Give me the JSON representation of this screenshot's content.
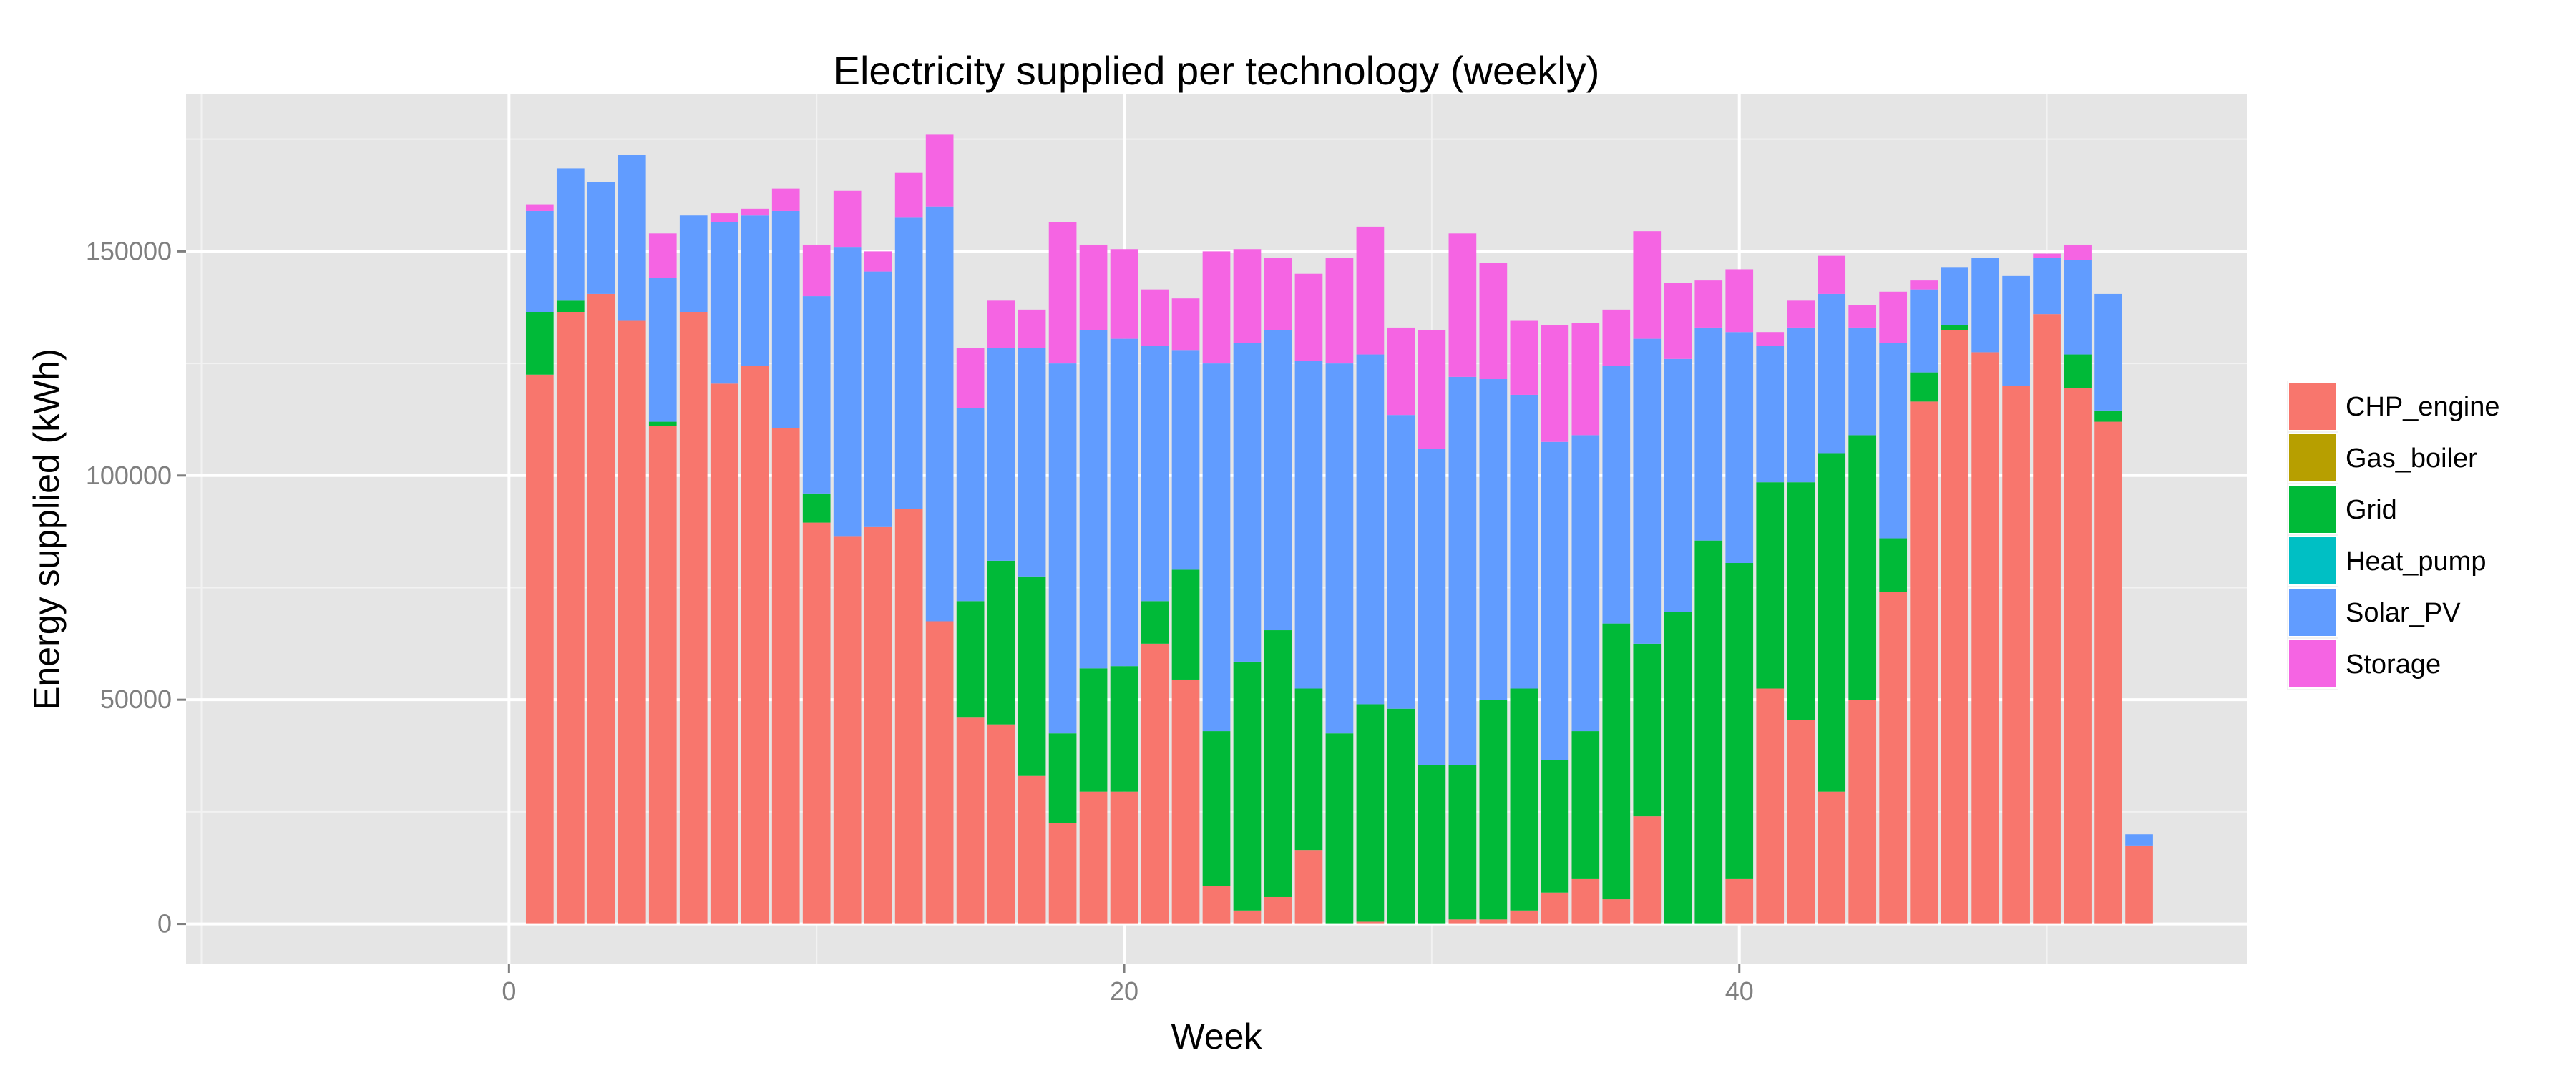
{
  "chart_data": {
    "type": "bar",
    "stacked": true,
    "title": "Electricity supplied per technology (weekly)",
    "xlabel": "Week",
    "ylabel": "Energy supplied (kWh)",
    "xlim": [
      -10.5,
      56.5
    ],
    "ylim": [
      -9000,
      185000
    ],
    "xticks": [
      0,
      20,
      40
    ],
    "xtick_labels": [
      "0",
      "20",
      "40"
    ],
    "yticks": [
      0,
      50000,
      100000,
      150000
    ],
    "ytick_labels": [
      "0",
      "50000",
      "100000",
      "150000"
    ],
    "grid": true,
    "legend_position": "right",
    "x": [
      1,
      2,
      3,
      4,
      5,
      6,
      7,
      8,
      9,
      10,
      11,
      12,
      13,
      14,
      15,
      16,
      17,
      18,
      19,
      20,
      21,
      22,
      23,
      24,
      25,
      26,
      27,
      28,
      29,
      30,
      31,
      32,
      33,
      34,
      35,
      36,
      37,
      38,
      39,
      40,
      41,
      42,
      43,
      44,
      45,
      46,
      47,
      48,
      49,
      50,
      51,
      52,
      53,
      54
    ],
    "series": [
      {
        "name": "CHP_engine",
        "color": "#F8766D",
        "values": [
          122500,
          136500,
          140500,
          134500,
          111000,
          136500,
          120500,
          124500,
          110500,
          89500,
          86500,
          88500,
          92500,
          67500,
          46000,
          44500,
          33000,
          22500,
          29500,
          29500,
          62500,
          54500,
          8500,
          3000,
          6000,
          16500,
          0,
          500,
          0,
          0,
          1000,
          1000,
          3000,
          7000,
          10000,
          5500,
          24000,
          0,
          0,
          10000,
          52500,
          45500,
          29500,
          50000,
          74000,
          116500,
          132500,
          127500,
          120000,
          136000,
          119500,
          112000,
          17500,
          0
        ]
      },
      {
        "name": "Gas_boiler",
        "color": "#B79F00",
        "values": [
          0,
          0,
          0,
          0,
          0,
          0,
          0,
          0,
          0,
          0,
          0,
          0,
          0,
          0,
          0,
          0,
          0,
          0,
          0,
          0,
          0,
          0,
          0,
          0,
          0,
          0,
          0,
          0,
          0,
          0,
          0,
          0,
          0,
          0,
          0,
          0,
          0,
          0,
          0,
          0,
          0,
          0,
          0,
          0,
          0,
          0,
          0,
          0,
          0,
          0,
          0,
          0,
          0,
          0
        ]
      },
      {
        "name": "Grid",
        "color": "#00BA38",
        "values": [
          14000,
          2500,
          0,
          0,
          1000,
          0,
          0,
          0,
          0,
          6500,
          0,
          0,
          0,
          0,
          26000,
          36500,
          44500,
          20000,
          27500,
          28000,
          9500,
          24500,
          34500,
          55500,
          59500,
          36000,
          42500,
          48500,
          48000,
          35500,
          34500,
          49000,
          49500,
          29500,
          33000,
          61500,
          38500,
          69500,
          85500,
          70500,
          46000,
          53000,
          75500,
          59000,
          12000,
          6500,
          1000,
          0,
          0,
          0,
          7500,
          2500,
          0,
          0
        ]
      },
      {
        "name": "Heat_pump",
        "color": "#00BFC4",
        "values": [
          0,
          0,
          0,
          0,
          0,
          0,
          0,
          0,
          0,
          0,
          0,
          0,
          0,
          0,
          0,
          0,
          0,
          0,
          0,
          0,
          0,
          0,
          0,
          0,
          0,
          0,
          0,
          0,
          0,
          0,
          0,
          0,
          0,
          0,
          0,
          0,
          0,
          0,
          0,
          0,
          0,
          0,
          0,
          0,
          0,
          0,
          0,
          0,
          0,
          0,
          0,
          0,
          0,
          0
        ]
      },
      {
        "name": "Solar_PV",
        "color": "#619CFF",
        "values": [
          22500,
          29500,
          25000,
          37000,
          32000,
          21500,
          36000,
          33500,
          48500,
          44000,
          64500,
          57000,
          65000,
          92500,
          43000,
          47500,
          51000,
          82500,
          75500,
          73000,
          57000,
          49000,
          82000,
          71000,
          67000,
          73000,
          82500,
          78000,
          65500,
          70500,
          86500,
          71500,
          65500,
          71000,
          66000,
          57500,
          68000,
          56500,
          47500,
          51500,
          30500,
          34500,
          35500,
          24000,
          43500,
          18500,
          13000,
          21000,
          24500,
          12500,
          21000,
          26000,
          2500,
          0
        ]
      },
      {
        "name": "Storage",
        "color": "#F564E3",
        "values": [
          1500,
          0,
          0,
          0,
          10000,
          0,
          2000,
          1500,
          5000,
          11500,
          12500,
          4500,
          10000,
          16000,
          13500,
          10500,
          8500,
          31500,
          19000,
          20000,
          12500,
          11500,
          25000,
          21000,
          16000,
          19500,
          23500,
          28500,
          19500,
          26500,
          32000,
          26000,
          16500,
          26000,
          25000,
          12500,
          24000,
          17000,
          10500,
          14000,
          3000,
          6000,
          8500,
          5000,
          11500,
          2000,
          0,
          0,
          0,
          1000,
          3500,
          0,
          0,
          0
        ]
      }
    ]
  }
}
